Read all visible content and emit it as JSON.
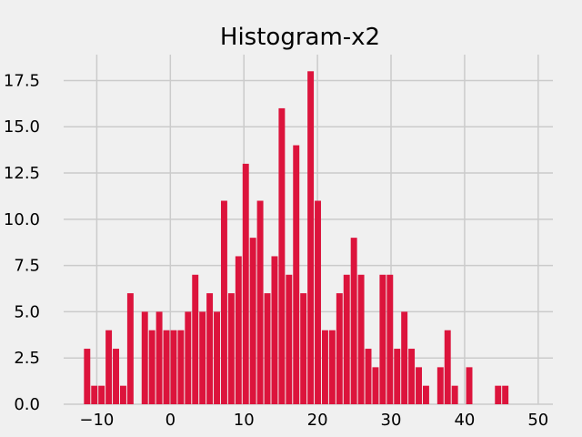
{
  "chart_data": {
    "type": "bar",
    "title": "Histogram-x2",
    "xlabel": "",
    "ylabel": "",
    "xlim": [
      -14.5,
      52
    ],
    "ylim": [
      0,
      18.9
    ],
    "grid": true,
    "bar_color": "#dc143c",
    "background_color": "#f0f0f0",
    "grid_color": "#cbcbcb",
    "bin_start": -11.8,
    "bin_width": 0.98,
    "values": [
      3,
      1,
      1,
      4,
      3,
      1,
      6,
      0,
      5,
      4,
      5,
      4,
      4,
      4,
      5,
      7,
      5,
      6,
      5,
      11,
      6,
      8,
      13,
      9,
      11,
      6,
      8,
      16,
      7,
      14,
      6,
      18,
      11,
      4,
      4,
      6,
      7,
      9,
      7,
      3,
      2,
      7,
      7,
      3,
      5,
      3,
      2,
      1,
      0,
      2,
      4,
      1,
      0,
      2,
      0,
      0,
      0,
      1,
      1
    ],
    "x_ticks": [
      -10,
      0,
      10,
      20,
      30,
      40,
      50
    ],
    "x_tick_labels": [
      "−10",
      "0",
      "10",
      "20",
      "30",
      "40",
      "50"
    ],
    "y_ticks": [
      0,
      2.5,
      5,
      7.5,
      10,
      12.5,
      15,
      17.5
    ],
    "y_tick_labels": [
      "0.0",
      "2.5",
      "5.0",
      "7.5",
      "10.0",
      "12.5",
      "15.0",
      "17.5"
    ]
  }
}
